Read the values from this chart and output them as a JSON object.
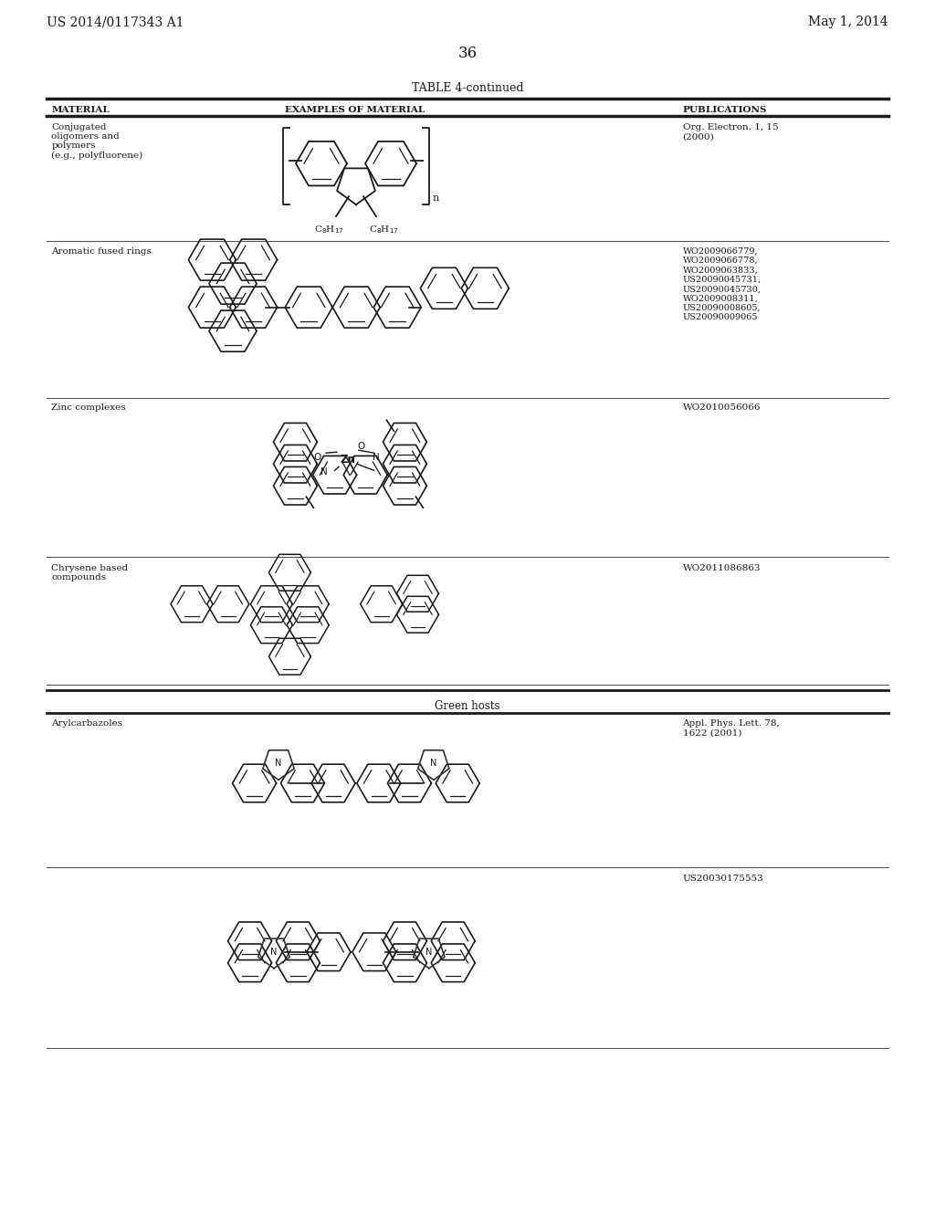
{
  "background_color": "#f5f5f0",
  "header_left": "US 2014/0117343 A1",
  "header_right": "May 1, 2014",
  "page_number": "36",
  "table_title": "TABLE 4-continued",
  "col_headers": [
    "MATERIAL",
    "EXAMPLES OF MATERIAL",
    "PUBLICATIONS"
  ],
  "font_size_header": 10,
  "font_size_col_header": 7.5,
  "font_size_body": 7.5,
  "font_size_page_num": 12,
  "row1_material": "Conjugated\noligomers and\npolymers\n(e.g., polyfluorene)",
  "row1_pub": "Org. Electron. 1, 15\n(2000)",
  "row2_material": "Aromatic fused rings",
  "row2_pub": "WO2009066779,\nWO2009066778,\nWO2009063833,\nUS20090045731,\nUS20090045730,\nWO2009008311,\nUS20090008605,\nUS20090009065",
  "row3_material": "Zinc complexes",
  "row3_pub": "WO2010056066",
  "row4_material": "Chrysene based\ncompounds",
  "row4_pub": "WO2011086863",
  "section_header": "Green hosts",
  "row5_material": "Arylcarbazoles",
  "row5_pub": "Appl. Phys. Lett. 78,\n1622 (2001)",
  "row6_pub": "US20030175553"
}
